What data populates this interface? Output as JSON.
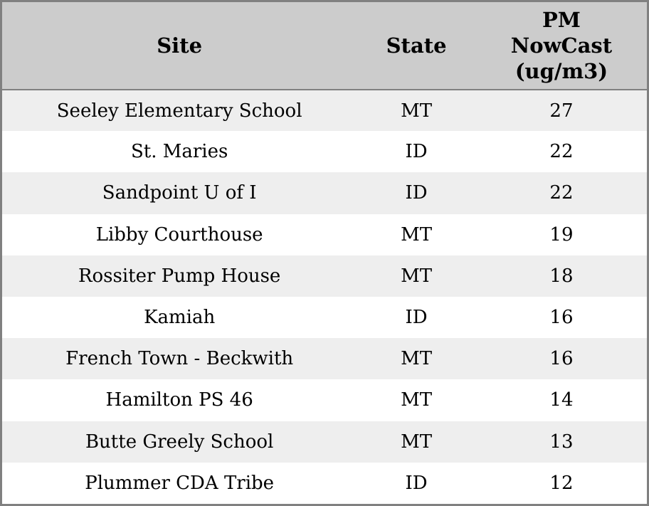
{
  "theme": {
    "border_color": "#808080",
    "header_bg": "#cccccc",
    "row_odd_bg": "#eeeeee",
    "row_even_bg": "#ffffff",
    "text_color": "#000000"
  },
  "table": {
    "columns": [
      {
        "label": "Site"
      },
      {
        "label": "State"
      },
      {
        "label": "PM NowCast (ug/m3)"
      }
    ],
    "rows": [
      {
        "site": "Seeley Elementary School",
        "state": "MT",
        "pm": "27"
      },
      {
        "site": "St. Maries",
        "state": "ID",
        "pm": "22"
      },
      {
        "site": "Sandpoint U of I",
        "state": "ID",
        "pm": "22"
      },
      {
        "site": "Libby Courthouse",
        "state": "MT",
        "pm": "19"
      },
      {
        "site": "Rossiter Pump House",
        "state": "MT",
        "pm": "18"
      },
      {
        "site": "Kamiah",
        "state": "ID",
        "pm": "16"
      },
      {
        "site": "French Town - Beckwith",
        "state": "MT",
        "pm": "16"
      },
      {
        "site": "Hamilton PS 46",
        "state": "MT",
        "pm": "14"
      },
      {
        "site": "Butte Greely School",
        "state": "MT",
        "pm": "13"
      },
      {
        "site": "Plummer CDA Tribe",
        "state": "ID",
        "pm": "12"
      }
    ]
  }
}
